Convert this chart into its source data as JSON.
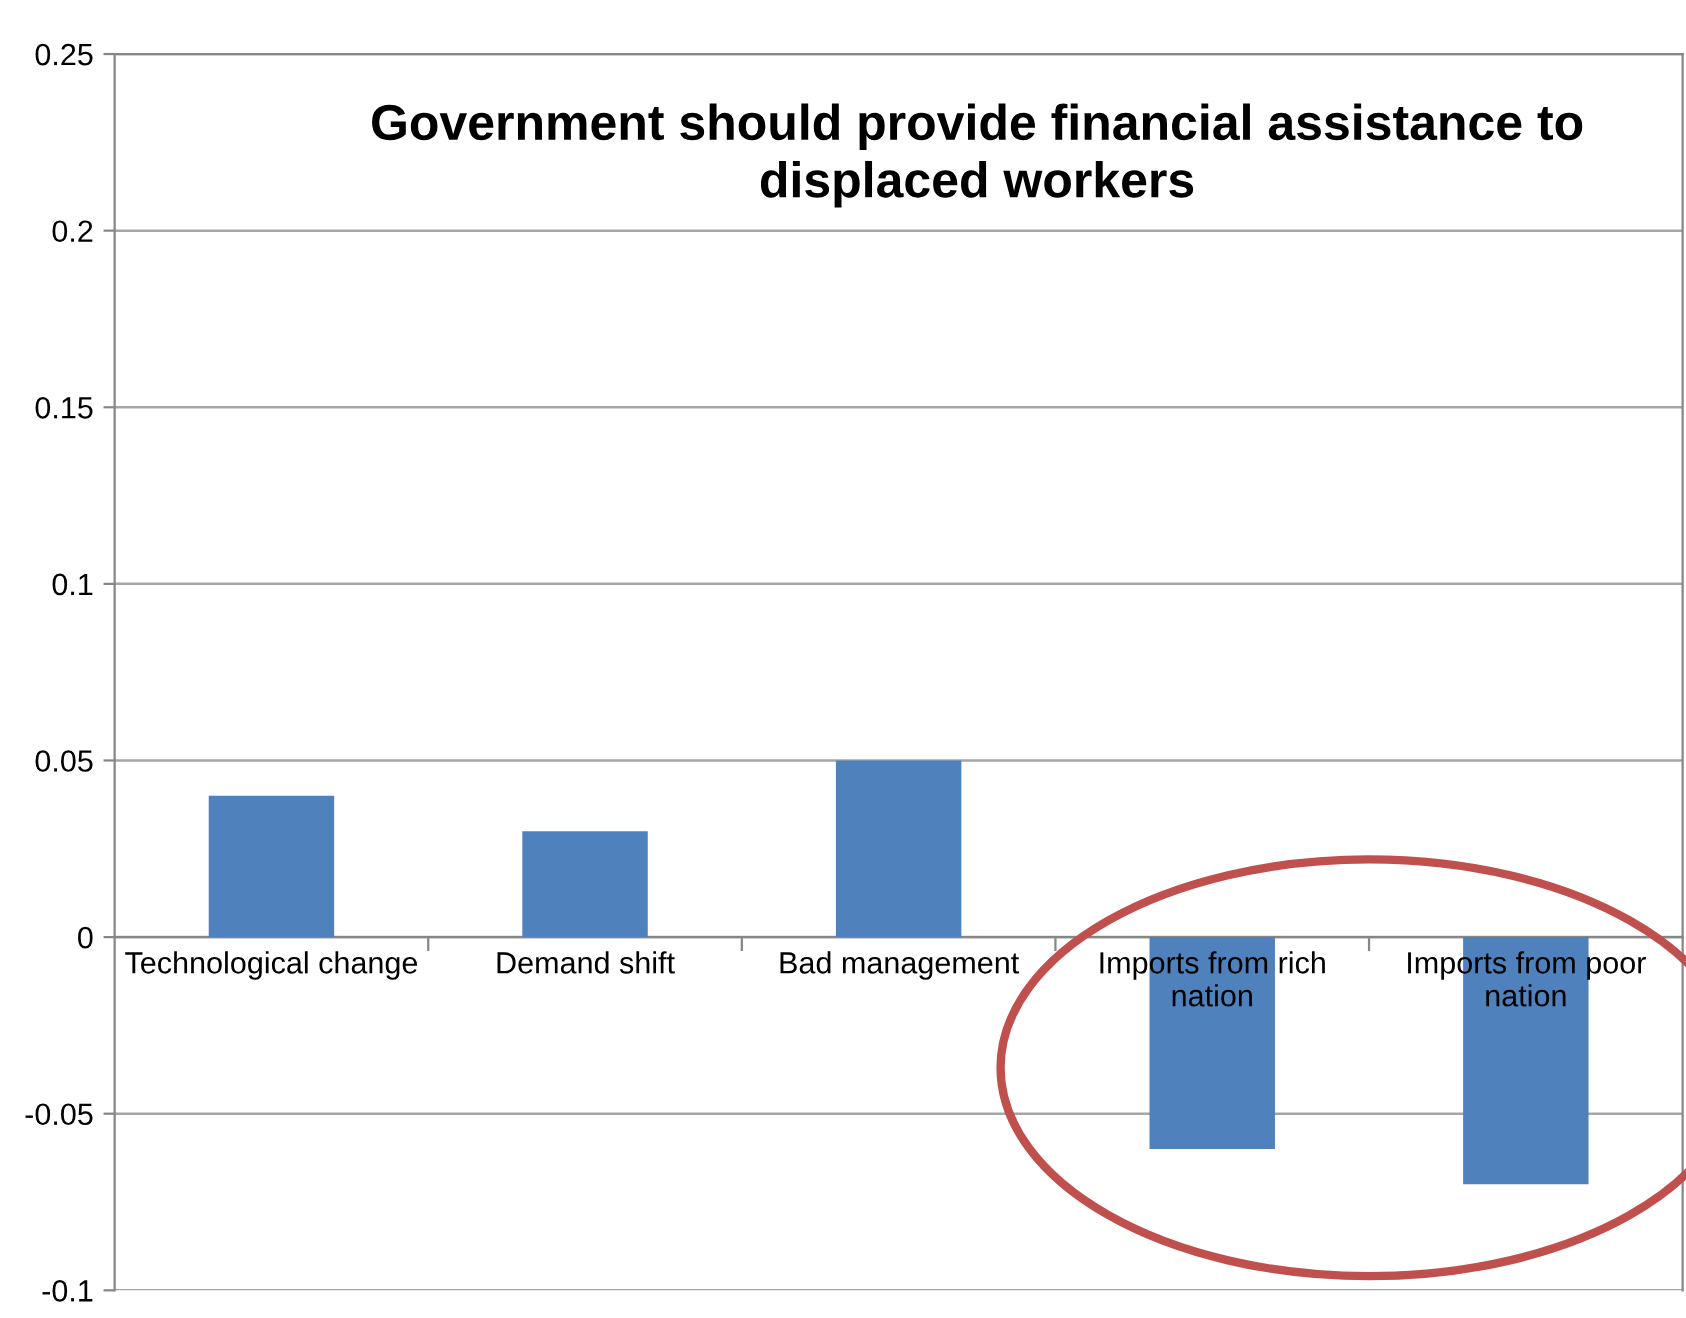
{
  "chart_data": {
    "type": "bar",
    "title": "Government should provide financial assistance to\ndisplaced workers",
    "categories": [
      "Technological change",
      "Demand shift",
      "Bad management",
      "Imports from rich\nnation",
      "Imports from poor\nnation"
    ],
    "values": [
      0.04,
      0.03,
      0.05,
      -0.06,
      -0.07
    ],
    "color": "#4f81bd",
    "ylim": [
      -0.1,
      0.25
    ],
    "yticks": [
      {
        "value": -0.1,
        "label": "-0.1"
      },
      {
        "value": -0.05,
        "label": "-0.05"
      },
      0,
      0.05,
      0.1,
      0.15,
      0.2,
      0.25
    ],
    "grid": "y"
  }
}
